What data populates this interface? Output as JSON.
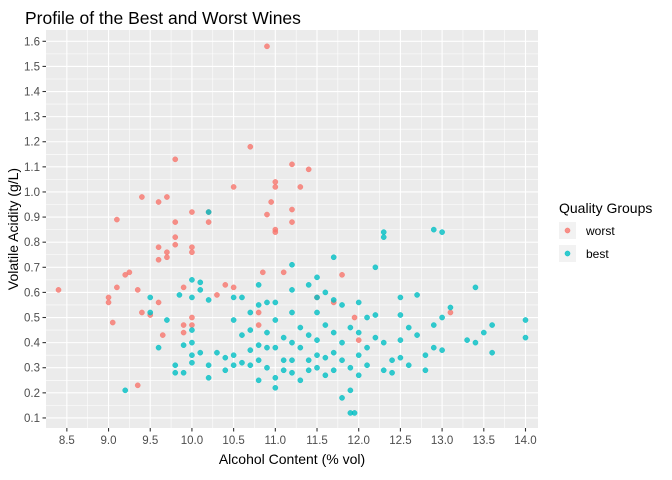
{
  "chart_data": {
    "type": "scatter",
    "title": "Profile of the Best and Worst Wines",
    "xlabel": "Alcohol Content (% vol)",
    "ylabel": "Volatile Acidity (g/L)",
    "xlim": [
      8.25,
      14.15
    ],
    "ylim": [
      0.06,
      1.645
    ],
    "x_ticks": [
      "8.5",
      "9.0",
      "9.5",
      "10.0",
      "10.5",
      "11.0",
      "11.5",
      "12.0",
      "12.5",
      "13.0",
      "13.5",
      "14.0"
    ],
    "y_ticks": [
      "0.1",
      "0.2",
      "0.3",
      "0.4",
      "0.5",
      "0.6",
      "0.7",
      "0.8",
      "0.9",
      "1.0",
      "1.1",
      "1.2",
      "1.3",
      "1.4",
      "1.5",
      "1.6"
    ],
    "grid": true,
    "legend": {
      "title": "Quality Groups",
      "placement": "right"
    },
    "series": [
      {
        "name": "worst",
        "color": "#F8766D",
        "points": [
          [
            8.4,
            0.61
          ],
          [
            9.0,
            0.58
          ],
          [
            9.0,
            0.56
          ],
          [
            9.05,
            0.48
          ],
          [
            9.1,
            0.62
          ],
          [
            9.1,
            0.89
          ],
          [
            9.2,
            0.67
          ],
          [
            9.25,
            0.68
          ],
          [
            9.35,
            0.61
          ],
          [
            9.35,
            0.23
          ],
          [
            9.4,
            0.98
          ],
          [
            9.4,
            0.52
          ],
          [
            9.5,
            0.51
          ],
          [
            9.6,
            0.96
          ],
          [
            9.6,
            0.78
          ],
          [
            9.6,
            0.73
          ],
          [
            9.6,
            0.56
          ],
          [
            9.65,
            0.43
          ],
          [
            9.7,
            0.98
          ],
          [
            9.7,
            0.74
          ],
          [
            9.7,
            0.76
          ],
          [
            9.8,
            1.13
          ],
          [
            9.8,
            0.88
          ],
          [
            9.8,
            0.82
          ],
          [
            9.8,
            0.79
          ],
          [
            9.9,
            0.62
          ],
          [
            9.9,
            0.47
          ],
          [
            9.9,
            0.44
          ],
          [
            10.0,
            0.92
          ],
          [
            10.0,
            0.78
          ],
          [
            10.0,
            0.76
          ],
          [
            10.0,
            0.5
          ],
          [
            10.0,
            0.47
          ],
          [
            10.2,
            0.92
          ],
          [
            10.2,
            0.88
          ],
          [
            10.3,
            0.59
          ],
          [
            10.4,
            0.63
          ],
          [
            10.5,
            0.62
          ],
          [
            10.5,
            1.02
          ],
          [
            10.7,
            1.18
          ],
          [
            10.8,
            0.52
          ],
          [
            10.8,
            0.47
          ],
          [
            10.85,
            0.68
          ],
          [
            10.9,
            1.58
          ],
          [
            10.9,
            0.91
          ],
          [
            10.95,
            0.96
          ],
          [
            11.0,
            1.04
          ],
          [
            11.0,
            1.02
          ],
          [
            11.0,
            0.85
          ],
          [
            11.0,
            0.84
          ],
          [
            11.1,
            0.68
          ],
          [
            11.2,
            1.11
          ],
          [
            11.2,
            0.93
          ],
          [
            11.2,
            0.88
          ],
          [
            11.3,
            1.02
          ],
          [
            11.4,
            1.09
          ],
          [
            11.5,
            0.58
          ],
          [
            11.7,
            0.56
          ],
          [
            11.8,
            0.67
          ],
          [
            11.95,
            0.5
          ],
          [
            12.0,
            0.41
          ],
          [
            13.1,
            0.52
          ]
        ]
      },
      {
        "name": "best",
        "color": "#00BFC4",
        "points": [
          [
            9.2,
            0.21
          ],
          [
            9.5,
            0.58
          ],
          [
            9.5,
            0.52
          ],
          [
            9.6,
            0.38
          ],
          [
            9.7,
            0.49
          ],
          [
            9.8,
            0.31
          ],
          [
            9.8,
            0.28
          ],
          [
            9.85,
            0.59
          ],
          [
            9.9,
            0.39
          ],
          [
            9.9,
            0.28
          ],
          [
            10.0,
            0.65
          ],
          [
            10.0,
            0.58
          ],
          [
            10.0,
            0.45
          ],
          [
            10.0,
            0.4
          ],
          [
            10.0,
            0.35
          ],
          [
            10.0,
            0.32
          ],
          [
            10.1,
            0.61
          ],
          [
            10.1,
            0.64
          ],
          [
            10.1,
            0.36
          ],
          [
            10.2,
            0.92
          ],
          [
            10.2,
            0.57
          ],
          [
            10.2,
            0.31
          ],
          [
            10.2,
            0.26
          ],
          [
            10.3,
            0.36
          ],
          [
            10.4,
            0.34
          ],
          [
            10.4,
            0.29
          ],
          [
            10.5,
            0.58
          ],
          [
            10.5,
            0.49
          ],
          [
            10.5,
            0.35
          ],
          [
            10.5,
            0.31
          ],
          [
            10.6,
            0.58
          ],
          [
            10.6,
            0.43
          ],
          [
            10.6,
            0.32
          ],
          [
            10.7,
            0.52
          ],
          [
            10.7,
            0.45
          ],
          [
            10.7,
            0.37
          ],
          [
            10.7,
            0.31
          ],
          [
            10.8,
            0.63
          ],
          [
            10.8,
            0.55
          ],
          [
            10.8,
            0.39
          ],
          [
            10.8,
            0.33
          ],
          [
            10.8,
            0.25
          ],
          [
            10.9,
            0.56
          ],
          [
            10.9,
            0.44
          ],
          [
            10.9,
            0.38
          ],
          [
            10.9,
            0.3
          ],
          [
            11.0,
            0.56
          ],
          [
            11.0,
            0.49
          ],
          [
            11.0,
            0.38
          ],
          [
            11.0,
            0.26
          ],
          [
            11.0,
            0.22
          ],
          [
            11.1,
            0.42
          ],
          [
            11.1,
            0.33
          ],
          [
            11.1,
            0.29
          ],
          [
            11.2,
            0.71
          ],
          [
            11.2,
            0.61
          ],
          [
            11.2,
            0.52
          ],
          [
            11.2,
            0.4
          ],
          [
            11.2,
            0.33
          ],
          [
            11.2,
            0.28
          ],
          [
            11.3,
            0.46
          ],
          [
            11.3,
            0.38
          ],
          [
            11.3,
            0.25
          ],
          [
            11.4,
            0.63
          ],
          [
            11.4,
            0.43
          ],
          [
            11.4,
            0.33
          ],
          [
            11.4,
            0.29
          ],
          [
            11.5,
            0.66
          ],
          [
            11.5,
            0.58
          ],
          [
            11.5,
            0.52
          ],
          [
            11.5,
            0.41
          ],
          [
            11.5,
            0.35
          ],
          [
            11.5,
            0.3
          ],
          [
            11.6,
            0.6
          ],
          [
            11.6,
            0.47
          ],
          [
            11.6,
            0.34
          ],
          [
            11.6,
            0.27
          ],
          [
            11.7,
            0.74
          ],
          [
            11.7,
            0.57
          ],
          [
            11.7,
            0.44
          ],
          [
            11.7,
            0.36
          ],
          [
            11.7,
            0.29
          ],
          [
            11.8,
            0.55
          ],
          [
            11.8,
            0.4
          ],
          [
            11.8,
            0.33
          ],
          [
            11.8,
            0.18
          ],
          [
            11.9,
            0.46
          ],
          [
            11.9,
            0.3
          ],
          [
            11.9,
            0.21
          ],
          [
            11.9,
            0.12
          ],
          [
            11.95,
            0.12
          ],
          [
            12.0,
            0.56
          ],
          [
            12.0,
            0.44
          ],
          [
            12.0,
            0.35
          ],
          [
            12.0,
            0.27
          ],
          [
            12.1,
            0.5
          ],
          [
            12.1,
            0.38
          ],
          [
            12.1,
            0.31
          ],
          [
            12.2,
            0.7
          ],
          [
            12.2,
            0.51
          ],
          [
            12.2,
            0.42
          ],
          [
            12.3,
            0.84
          ],
          [
            12.3,
            0.82
          ],
          [
            12.3,
            0.4
          ],
          [
            12.3,
            0.29
          ],
          [
            12.4,
            0.33
          ],
          [
            12.4,
            0.28
          ],
          [
            12.5,
            0.58
          ],
          [
            12.5,
            0.51
          ],
          [
            12.5,
            0.41
          ],
          [
            12.5,
            0.34
          ],
          [
            12.6,
            0.46
          ],
          [
            12.6,
            0.31
          ],
          [
            12.7,
            0.59
          ],
          [
            12.7,
            0.43
          ],
          [
            12.8,
            0.35
          ],
          [
            12.8,
            0.29
          ],
          [
            12.9,
            0.85
          ],
          [
            12.9,
            0.47
          ],
          [
            12.9,
            0.38
          ],
          [
            13.0,
            0.84
          ],
          [
            13.0,
            0.5
          ],
          [
            13.0,
            0.37
          ],
          [
            13.1,
            0.54
          ],
          [
            13.3,
            0.41
          ],
          [
            13.4,
            0.62
          ],
          [
            13.4,
            0.4
          ],
          [
            13.5,
            0.44
          ],
          [
            13.6,
            0.47
          ],
          [
            13.6,
            0.36
          ],
          [
            14.0,
            0.49
          ],
          [
            14.0,
            0.42
          ]
        ]
      }
    ]
  }
}
